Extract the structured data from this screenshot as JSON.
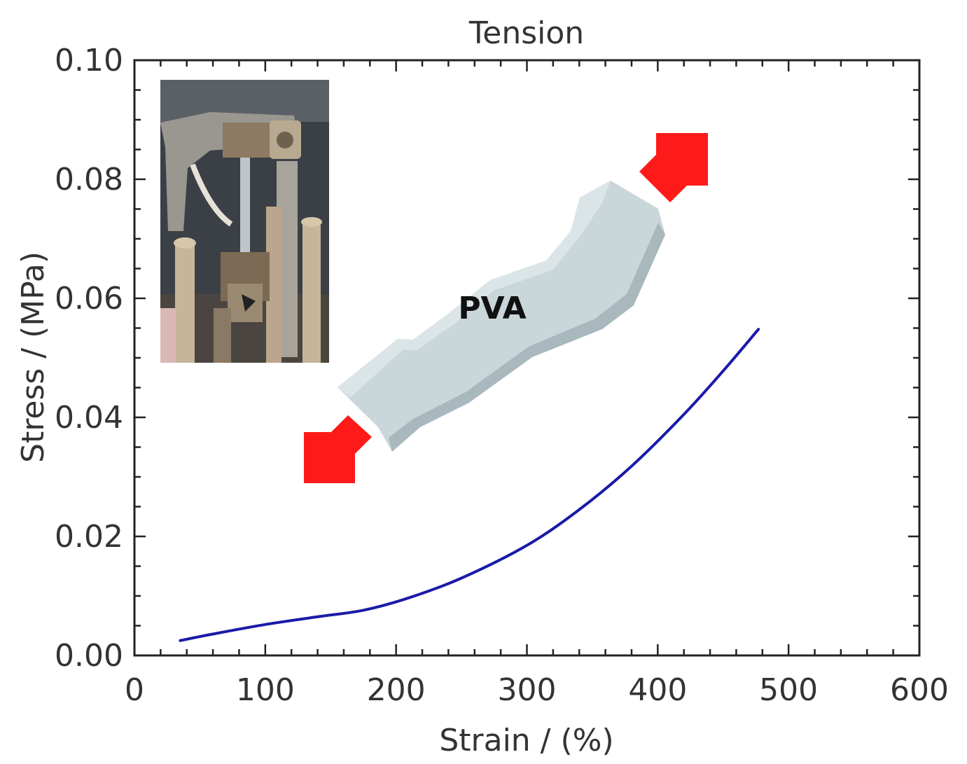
{
  "chart_data": {
    "type": "line",
    "title": "Tension",
    "xlabel": "Strain / (%)",
    "ylabel": "Stress / (MPa)",
    "xlim": [
      0,
      600
    ],
    "ylim": [
      0,
      0.1
    ],
    "x_ticks": [
      0,
      100,
      200,
      300,
      400,
      500,
      600
    ],
    "x_tick_labels": [
      "0",
      "100",
      "200",
      "300",
      "400",
      "500",
      "600"
    ],
    "y_ticks": [
      0,
      0.02,
      0.04,
      0.06,
      0.08,
      0.1
    ],
    "y_tick_labels": [
      "0.00",
      "0.02",
      "0.04",
      "0.06",
      "0.08",
      "0.10"
    ],
    "grid": false,
    "series": [
      {
        "name": "PVA",
        "color": "#1a1aa8",
        "x": [
          35,
          60,
          100,
          140,
          175,
          210,
          250,
          300,
          340,
          380,
          420,
          450,
          477
        ],
        "y": [
          0.0025,
          0.0036,
          0.0052,
          0.0065,
          0.0076,
          0.0097,
          0.013,
          0.0185,
          0.0245,
          0.0318,
          0.0405,
          0.0478,
          0.0548
        ]
      }
    ],
    "annotations": {
      "specimen_label": "PVA",
      "arrow_color": "#ff1a1a",
      "specimen_color": "#c9d6da"
    }
  }
}
